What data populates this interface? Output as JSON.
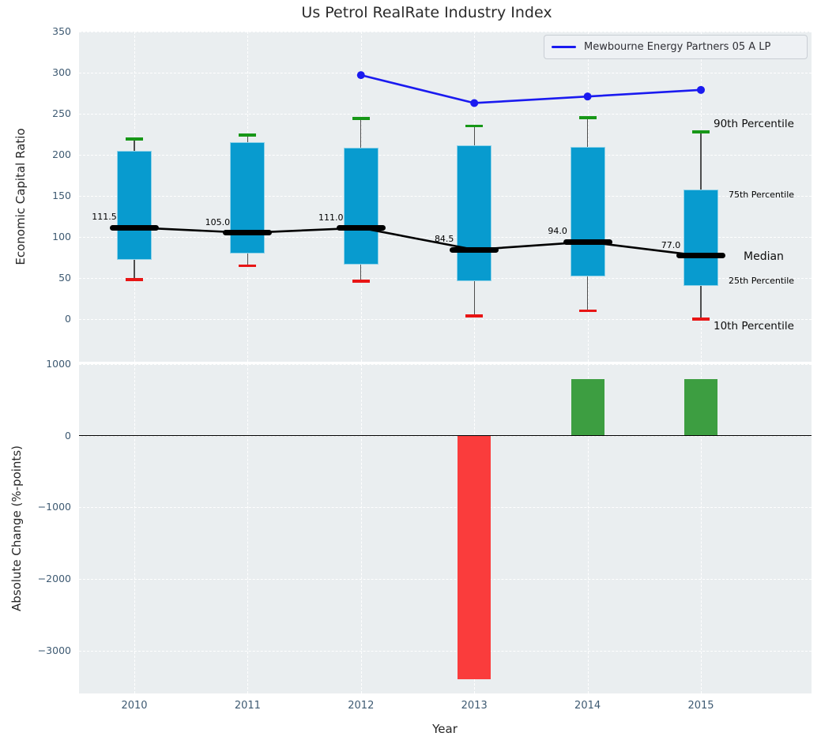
{
  "title": "Us Petrol RealRate Industry Index",
  "legend": {
    "series_label": "Mewbourne Energy Partners 05 A LP"
  },
  "axes": {
    "top_ylabel": "Economic Capital Ratio",
    "bottom_ylabel": "Absolute Change (%-points)",
    "xlabel": "Year"
  },
  "annotations": {
    "p90": "90th Percentile",
    "p75": "75th Percentile",
    "median": "Median",
    "p25": "25th Percentile",
    "p10": "10th Percentile"
  },
  "colors": {
    "panel_bg": "#eaeef0",
    "grid": "#ffffff",
    "tick_text": "#3e5a72",
    "text": "#262626",
    "box_fill": "#089bcf",
    "whisker": "#4d4d4d",
    "p90_cap": "#179717",
    "p10_cap": "#e81515",
    "median": "#000000",
    "company_line": "#1a1af0",
    "bar_positive": "#3d9e41",
    "bar_negative": "#fa3c3c",
    "percentile_blue": "#149bd8"
  },
  "chart_data": [
    {
      "type": "box",
      "panel": "top",
      "title": "Us Petrol RealRate Industry Index",
      "ylabel": "Economic Capital Ratio",
      "ylim": [
        -52,
        350
      ],
      "yticks": [
        350,
        300,
        250,
        200,
        150,
        100,
        50,
        0
      ],
      "grid": true,
      "categories": [
        2010,
        2011,
        2012,
        2013,
        2014,
        2015
      ],
      "boxes": [
        {
          "year": 2010,
          "p10": 48,
          "p25": 72,
          "median": 111.5,
          "p75": 205,
          "p90": 219
        },
        {
          "year": 2011,
          "p10": 65,
          "p25": 80,
          "median": 105.0,
          "p75": 215,
          "p90": 224
        },
        {
          "year": 2012,
          "p10": 46,
          "p25": 66,
          "median": 111.0,
          "p75": 209,
          "p90": 244
        },
        {
          "year": 2013,
          "p10": 4,
          "p25": 46,
          "median": 84.5,
          "p75": 212,
          "p90": 235
        },
        {
          "year": 2014,
          "p10": 10,
          "p25": 52,
          "median": 94.0,
          "p75": 210,
          "p90": 245
        },
        {
          "year": 2015,
          "p10": 0,
          "p25": 40,
          "median": 77.0,
          "p75": 158,
          "p90": 228
        }
      ],
      "median_labels": [
        "111.5",
        "105.0",
        "111.0",
        "84.5",
        "94.0",
        "77.0"
      ],
      "series": [
        {
          "name": "Mewbourne Energy Partners 05 A LP",
          "x": [
            2012,
            2013,
            2014,
            2015
          ],
          "y": [
            297,
            263,
            271,
            279
          ],
          "legend_position": "upper right"
        }
      ]
    },
    {
      "type": "bar",
      "panel": "bottom",
      "ylabel": "Absolute Change (%-points)",
      "xlabel": "Year",
      "ylim": [
        -3700,
        1000
      ],
      "yticks": [
        1000,
        0,
        -1000,
        -2000,
        -3000
      ],
      "grid": true,
      "categories": [
        2010,
        2011,
        2012,
        2013,
        2014,
        2015
      ],
      "values": [
        null,
        null,
        null,
        -3400,
        790,
        790
      ]
    }
  ]
}
